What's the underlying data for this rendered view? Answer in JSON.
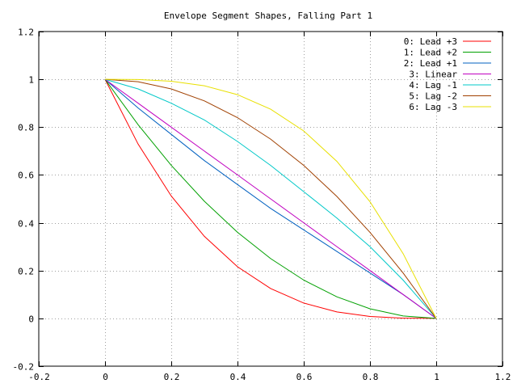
{
  "chart_data": {
    "type": "line",
    "title": "Envelope Segment Shapes, Falling Part 1",
    "xlabel": "",
    "ylabel": "",
    "xlim": [
      -0.2,
      1.2
    ],
    "ylim": [
      -0.2,
      1.2
    ],
    "xticks": [
      -0.2,
      0,
      0.2,
      0.4,
      0.6,
      0.8,
      1,
      1.2
    ],
    "yticks": [
      -0.2,
      0,
      0.2,
      0.4,
      0.6,
      0.8,
      1,
      1.2
    ],
    "xtick_labels": [
      "-0.2",
      "0",
      "0.2",
      "0.4",
      "0.6",
      "0.8",
      "1",
      "1.2"
    ],
    "ytick_labels": [
      "-0.2",
      "0",
      "0.2",
      "0.4",
      "0.6",
      "0.8",
      "1",
      "1.2"
    ],
    "grid": true,
    "legend_position": "top-right",
    "x": [
      0,
      0.1,
      0.2,
      0.3,
      0.4,
      0.5,
      0.6,
      0.7,
      0.8,
      0.9,
      1
    ],
    "series": [
      {
        "name": "0: Lead +3",
        "color": "#ff0000",
        "values": [
          1,
          0.729,
          0.512,
          0.343,
          0.216,
          0.125,
          0.064,
          0.027,
          0.008,
          0.001,
          0
        ]
      },
      {
        "name": "1: Lead +2",
        "color": "#00a000",
        "values": [
          1,
          0.81,
          0.64,
          0.49,
          0.36,
          0.25,
          0.16,
          0.09,
          0.04,
          0.01,
          0
        ]
      },
      {
        "name": "2: Lead +1",
        "color": "#0060c0",
        "values": [
          1,
          0.88,
          0.77,
          0.66,
          0.56,
          0.46,
          0.37,
          0.28,
          0.19,
          0.1,
          0
        ]
      },
      {
        "name": "3: Linear",
        "color": "#c000c0",
        "values": [
          1,
          0.9,
          0.8,
          0.7,
          0.6,
          0.5,
          0.4,
          0.3,
          0.2,
          0.1,
          0
        ]
      },
      {
        "name": "4: Lag -1",
        "color": "#00c8c8",
        "values": [
          1,
          0.96,
          0.9,
          0.83,
          0.74,
          0.64,
          0.53,
          0.42,
          0.3,
          0.16,
          0
        ]
      },
      {
        "name": "5: Lag -2",
        "color": "#a04000",
        "values": [
          1,
          0.99,
          0.96,
          0.91,
          0.84,
          0.75,
          0.64,
          0.51,
          0.36,
          0.19,
          0
        ]
      },
      {
        "name": "6: Lag -3",
        "color": "#e8e000",
        "values": [
          1,
          0.999,
          0.992,
          0.973,
          0.936,
          0.875,
          0.784,
          0.657,
          0.488,
          0.271,
          0
        ]
      }
    ]
  }
}
